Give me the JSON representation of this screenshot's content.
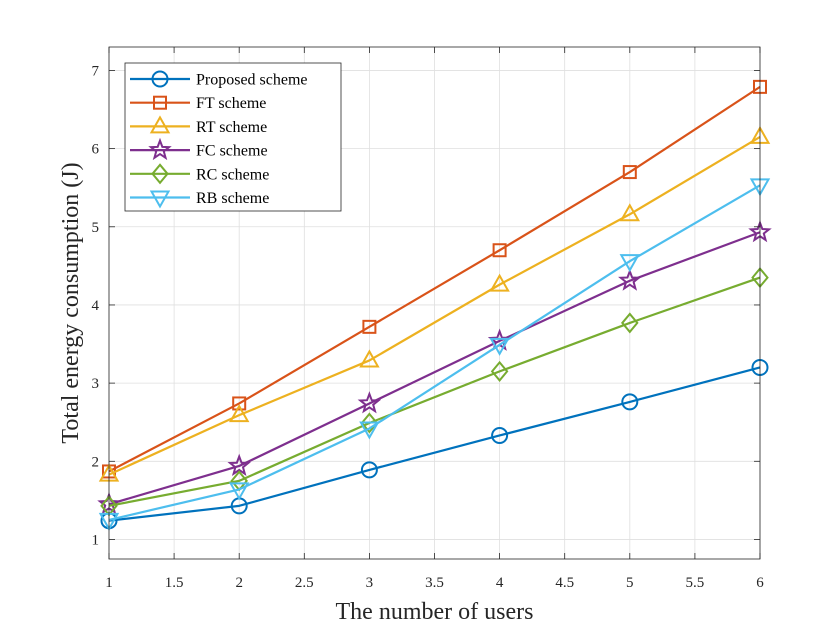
{
  "chart_data": {
    "type": "line",
    "xlabel": "The number of users",
    "ylabel": "Total energy consumption (J)",
    "xlim": [
      1,
      6
    ],
    "ylim": [
      0.75,
      7.3
    ],
    "xticks": [
      1,
      1.5,
      2,
      2.5,
      3,
      3.5,
      4,
      4.5,
      5,
      5.5,
      6
    ],
    "xtick_labels": [
      "1",
      "1.5",
      "2",
      "2.5",
      "3",
      "3.5",
      "4",
      "4.5",
      "5",
      "5.5",
      "6"
    ],
    "yticks": [
      1,
      2,
      3,
      4,
      5,
      6,
      7
    ],
    "ytick_labels": [
      "1",
      "2",
      "3",
      "4",
      "5",
      "6",
      "7"
    ],
    "grid": true,
    "legend_position": "top-left",
    "x": [
      1,
      2,
      3,
      4,
      5,
      6
    ],
    "series": [
      {
        "name": "Proposed scheme",
        "marker": "circle",
        "color": "#0072BD",
        "values": [
          1.24,
          1.43,
          1.89,
          2.33,
          2.76,
          3.2
        ]
      },
      {
        "name": "FT scheme",
        "marker": "square",
        "color": "#D95319",
        "values": [
          1.87,
          2.74,
          3.72,
          4.7,
          5.7,
          6.79
        ]
      },
      {
        "name": "RT scheme",
        "marker": "triangle-up",
        "color": "#EDB120",
        "values": [
          1.83,
          2.59,
          3.29,
          4.26,
          5.16,
          6.15
        ]
      },
      {
        "name": "FC scheme",
        "marker": "star",
        "color": "#7E2F8E",
        "values": [
          1.45,
          1.94,
          2.74,
          3.54,
          4.31,
          4.93
        ]
      },
      {
        "name": "RC scheme",
        "marker": "diamond",
        "color": "#77AC30",
        "values": [
          1.43,
          1.75,
          2.49,
          3.15,
          3.77,
          4.35
        ]
      },
      {
        "name": "RB scheme",
        "marker": "triangle-down",
        "color": "#4DBEEE",
        "values": [
          1.25,
          1.64,
          2.42,
          3.49,
          4.56,
          5.53
        ]
      }
    ]
  }
}
